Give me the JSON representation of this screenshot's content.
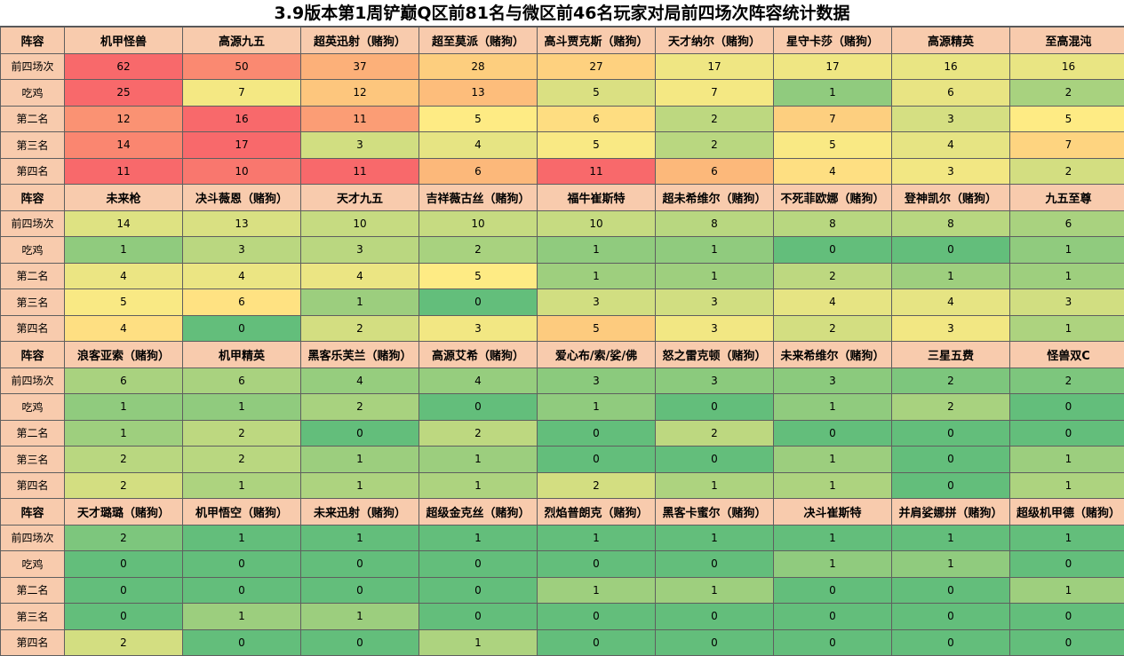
{
  "title": "3.9版本第1周铲巅Q区前81名与微区前46名玩家对局前四场次阵容统计数据",
  "header_label": "阵容",
  "row_labels": [
    "前四场次",
    "吃鸡",
    "第二名",
    "第三名",
    "第四名"
  ],
  "blocks": [
    {
      "comps": [
        "机甲怪兽",
        "高源九五",
        "超英迅射（赌狗）",
        "超至莫派（赌狗）",
        "高斗贾克斯（赌狗）",
        "天才纳尔（赌狗）",
        "星守卡莎（赌狗）",
        "高源精英",
        "至高混沌"
      ],
      "rows": [
        [
          62,
          50,
          37,
          28,
          27,
          17,
          17,
          16,
          16
        ],
        [
          25,
          7,
          12,
          13,
          5,
          7,
          1,
          6,
          2
        ],
        [
          12,
          16,
          11,
          5,
          6,
          2,
          7,
          3,
          5
        ],
        [
          14,
          17,
          3,
          4,
          5,
          2,
          5,
          4,
          7
        ],
        [
          11,
          10,
          11,
          6,
          11,
          6,
          4,
          3,
          2
        ]
      ]
    },
    {
      "comps": [
        "未来枪",
        "决斗薇恩（赌狗）",
        "天才九五",
        "吉祥薇古丝（赌狗）",
        "福牛崔斯特",
        "超未希维尔（赌狗）",
        "不死菲欧娜（赌狗）",
        "登神凯尔（赌狗）",
        "九五至尊"
      ],
      "rows": [
        [
          14,
          13,
          10,
          10,
          10,
          8,
          8,
          8,
          6
        ],
        [
          1,
          3,
          3,
          2,
          1,
          1,
          0,
          0,
          1
        ],
        [
          4,
          4,
          4,
          5,
          1,
          1,
          2,
          1,
          1
        ],
        [
          5,
          6,
          1,
          0,
          3,
          3,
          4,
          4,
          3
        ],
        [
          4,
          0,
          2,
          3,
          5,
          3,
          2,
          3,
          1
        ]
      ]
    },
    {
      "comps": [
        "浪客亚索（赌狗）",
        "机甲精英",
        "黑客乐芙兰（赌狗）",
        "高源艾希（赌狗）",
        "爱心布/索/娑/佛",
        "怒之雷克顿（赌狗）",
        "未来希维尔（赌狗）",
        "三星五费",
        "怪兽双C"
      ],
      "rows": [
        [
          6,
          6,
          4,
          4,
          3,
          3,
          3,
          2,
          2
        ],
        [
          1,
          1,
          2,
          0,
          1,
          0,
          1,
          2,
          0
        ],
        [
          1,
          2,
          0,
          2,
          0,
          2,
          0,
          0,
          0
        ],
        [
          2,
          2,
          1,
          1,
          0,
          0,
          1,
          0,
          1
        ],
        [
          2,
          1,
          1,
          1,
          2,
          1,
          1,
          0,
          1
        ]
      ]
    },
    {
      "comps": [
        "天才璐璐（赌狗）",
        "机甲悟空（赌狗）",
        "未来迅射（赌狗）",
        "超级金克丝（赌狗）",
        "烈焰普朗克（赌狗）",
        "黑客卡蜜尔（赌狗）",
        "决斗崔斯特",
        "并肩娑娜拼（赌狗）",
        "超级机甲德（赌狗）"
      ],
      "rows": [
        [
          2,
          1,
          1,
          1,
          1,
          1,
          1,
          1,
          1
        ],
        [
          0,
          0,
          0,
          0,
          0,
          0,
          1,
          1,
          0
        ],
        [
          0,
          0,
          0,
          0,
          1,
          1,
          0,
          0,
          1
        ],
        [
          0,
          1,
          1,
          0,
          0,
          0,
          0,
          0,
          0
        ],
        [
          2,
          0,
          0,
          1,
          0,
          0,
          0,
          0,
          0
        ]
      ]
    }
  ],
  "colors": {
    "header_bg": "#f8cbad",
    "scale_low": "#63be7b",
    "scale_mid": "#ffeb84",
    "scale_high": "#f8696b"
  }
}
